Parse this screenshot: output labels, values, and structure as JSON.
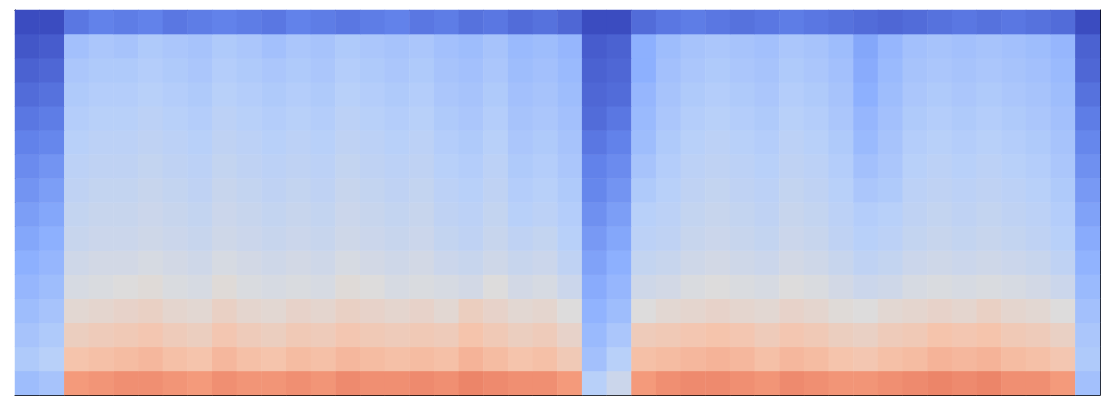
{
  "chart_data": {
    "type": "heatmap",
    "tick_labels": false,
    "color_range": [
      -80,
      0
    ],
    "cells": [
      [
        -56,
        -54,
        -20,
        -19,
        -18,
        -18,
        -19,
        -20,
        -18,
        -19,
        -19,
        -18,
        -19,
        -17,
        -18,
        -18,
        -17,
        -18,
        -16,
        -17,
        -18,
        -18,
        -20,
        -50,
        -45,
        -20,
        -18,
        -17,
        -17,
        -18,
        -19,
        -17,
        -18,
        -19,
        -19,
        -18,
        -17,
        -16,
        -17,
        -16,
        -18,
        -18,
        -20,
        -55
      ],
      [
        -52,
        -50,
        -30,
        -29,
        -28,
        -27,
        -29,
        -30,
        -27,
        -29,
        -30,
        -28,
        -29,
        -27,
        -28,
        -29,
        -28,
        -29,
        -26,
        -28,
        -30,
        -29,
        -32,
        -55,
        -50,
        -29,
        -28,
        -27,
        -26,
        -27,
        -29,
        -27,
        -28,
        -30,
        -31,
        -29,
        -28,
        -26,
        -27,
        -26,
        -28,
        -29,
        -31,
        -52
      ],
      [
        -54,
        -52,
        -34,
        -33,
        -32,
        -31,
        -33,
        -34,
        -31,
        -33,
        -34,
        -32,
        -33,
        -31,
        -32,
        -33,
        -32,
        -33,
        -30,
        -32,
        -34,
        -33,
        -36,
        -57,
        -53,
        -33,
        -32,
        -31,
        -30,
        -31,
        -33,
        -31,
        -32,
        -34,
        -35,
        -33,
        -32,
        -30,
        -31,
        -30,
        -32,
        -33,
        -35,
        -53
      ],
      [
        -56,
        -54,
        -38,
        -37,
        -36,
        -35,
        -37,
        -38,
        -35,
        -37,
        -38,
        -36,
        -37,
        -35,
        -36,
        -37,
        -36,
        -38,
        -34,
        -36,
        -38,
        -37,
        -40,
        -59,
        -56,
        -40,
        -38,
        -37,
        -36,
        -37,
        -38,
        -36,
        -37,
        -39,
        -40,
        -38,
        -37,
        -36,
        -37,
        -35,
        -37,
        -38,
        -40,
        -55
      ],
      [
        -58,
        -56,
        -42,
        -41,
        -40,
        -39,
        -41,
        -42,
        -39,
        -41,
        -42,
        -41,
        -42,
        -39,
        -40,
        -42,
        -41,
        -42,
        -43,
        -40,
        -43,
        -42,
        -45,
        -61,
        -58,
        -44,
        -43,
        -41,
        -40,
        -41,
        -42,
        -40,
        -41,
        -43,
        -45,
        -44,
        -42,
        -41,
        -42,
        -41,
        -42,
        -43,
        -45,
        -57
      ],
      [
        -60,
        -58,
        -44,
        -43,
        -43,
        -42,
        -43,
        -44,
        -42,
        -43,
        -44,
        -43,
        -44,
        -42,
        -43,
        -44,
        -43,
        -45,
        -46,
        -44,
        -46,
        -45,
        -48,
        -63,
        -60,
        -47,
        -46,
        -44,
        -43,
        -44,
        -45,
        -43,
        -44,
        -46,
        -48,
        -47,
        -45,
        -44,
        -45,
        -44,
        -45,
        -46,
        -48,
        -59
      ],
      [
        -62,
        -60,
        -46,
        -45,
        -45,
        -44,
        -45,
        -46,
        -44,
        -45,
        -46,
        -45,
        -46,
        -44,
        -45,
        -46,
        -45,
        -47,
        -48,
        -46,
        -48,
        -47,
        -50,
        -65,
        -62,
        -49,
        -48,
        -46,
        -45,
        -46,
        -47,
        -45,
        -46,
        -48,
        -50,
        -49,
        -47,
        -46,
        -47,
        -46,
        -47,
        -48,
        -50,
        -61
      ],
      [
        -64,
        -62,
        -47,
        -46,
        -46,
        -45,
        -46,
        -47,
        -45,
        -46,
        -47,
        -46,
        -47,
        -45,
        -46,
        -47,
        -46,
        -48,
        -49,
        -47,
        -50,
        -49,
        -51,
        -67,
        -64,
        -50,
        -49,
        -47,
        -46,
        -47,
        -48,
        -46,
        -47,
        -49,
        -51,
        -50,
        -48,
        -47,
        -48,
        -47,
        -48,
        -49,
        -51,
        -63
      ],
      [
        -66,
        -64,
        -48,
        -47,
        -47,
        -46,
        -47,
        -48,
        -46,
        -47,
        -48,
        -47,
        -48,
        -46,
        -47,
        -48,
        -47,
        -49,
        -50,
        -48,
        -51,
        -50,
        -52,
        -69,
        -66,
        -52,
        -50,
        -48,
        -47,
        -48,
        -49,
        -47,
        -48,
        -50,
        -53,
        -52,
        -49,
        -48,
        -49,
        -48,
        -49,
        -50,
        -52,
        -65
      ],
      [
        -68,
        -66,
        -49,
        -48,
        -48,
        -47,
        -48,
        -49,
        -47,
        -48,
        -49,
        -48,
        -49,
        -47,
        -48,
        -49,
        -48,
        -50,
        -51,
        -49,
        -52,
        -51,
        -53,
        -70,
        -68,
        -54,
        -51,
        -49,
        -48,
        -49,
        -50,
        -48,
        -49,
        -51,
        -55,
        -53,
        -50,
        -49,
        -50,
        -49,
        -50,
        -51,
        -53,
        -67
      ],
      [
        -70,
        -69,
        -50,
        -49,
        -49,
        -48,
        -49,
        -50,
        -48,
        -49,
        -50,
        -49,
        -50,
        -48,
        -49,
        -50,
        -49,
        -51,
        -52,
        -50,
        -53,
        -52,
        -54,
        -72,
        -70,
        -56,
        -52,
        -50,
        -49,
        -50,
        -51,
        -49,
        -50,
        -52,
        -57,
        -54,
        -51,
        -50,
        -51,
        -50,
        -51,
        -52,
        -54,
        -69
      ],
      [
        -72,
        -71,
        -51,
        -50,
        -50,
        -49,
        -50,
        -51,
        -49,
        -50,
        -51,
        -50,
        -51,
        -49,
        -50,
        -51,
        -50,
        -52,
        -53,
        -51,
        -54,
        -53,
        -55,
        -74,
        -72,
        -57,
        -53,
        -51,
        -50,
        -51,
        -52,
        -50,
        -51,
        -53,
        -58,
        -55,
        -52,
        -51,
        -52,
        -51,
        -52,
        -53,
        -55,
        -71
      ],
      [
        -74,
        -73,
        -52,
        -51,
        -51,
        -50,
        -51,
        -52,
        -50,
        -51,
        -52,
        -51,
        -52,
        -50,
        -51,
        -52,
        -51,
        -53,
        -54,
        -52,
        -55,
        -54,
        -56,
        -75,
        -74,
        -58,
        -54,
        -52,
        -51,
        -52,
        -53,
        -51,
        -52,
        -54,
        -60,
        -56,
        -53,
        -52,
        -53,
        -52,
        -53,
        -54,
        -56,
        -73
      ],
      [
        -76,
        -75,
        -53,
        -52,
        -52,
        -51,
        -52,
        -53,
        -51,
        -52,
        -53,
        -52,
        -53,
        -51,
        -52,
        -53,
        -52,
        -54,
        -55,
        -53,
        -56,
        -55,
        -57,
        -76,
        -75,
        -60,
        -55,
        -53,
        -52,
        -53,
        -54,
        -52,
        -53,
        -55,
        -61,
        -57,
        -54,
        -53,
        -54,
        -53,
        -54,
        -55,
        -57,
        -75
      ],
      [
        -78,
        -77,
        -55,
        -53,
        -54,
        -52,
        -53,
        -54,
        -52,
        -53,
        -55,
        -53,
        -54,
        -52,
        -53,
        -54,
        -53,
        -55,
        -56,
        -54,
        -57,
        -56,
        -58,
        -77,
        -76,
        -60,
        -56,
        -54,
        -53,
        -54,
        -55,
        -53,
        -54,
        -56,
        -62,
        -58,
        -55,
        -54,
        -55,
        -54,
        -55,
        -56,
        -58,
        -76
      ],
      [
        -80,
        -80,
        -72,
        -70,
        -71,
        -70,
        -72,
        -71,
        -70,
        -71,
        -72,
        -70,
        -71,
        -72,
        -71,
        -70,
        -72,
        -71,
        -73,
        -72,
        -74,
        -73,
        -75,
        -80,
        -80,
        -74,
        -72,
        -71,
        -72,
        -73,
        -72,
        -71,
        -72,
        -73,
        -74,
        -75,
        -74,
        -73,
        -72,
        -73,
        -72,
        -73,
        -74,
        -80
      ]
    ]
  }
}
